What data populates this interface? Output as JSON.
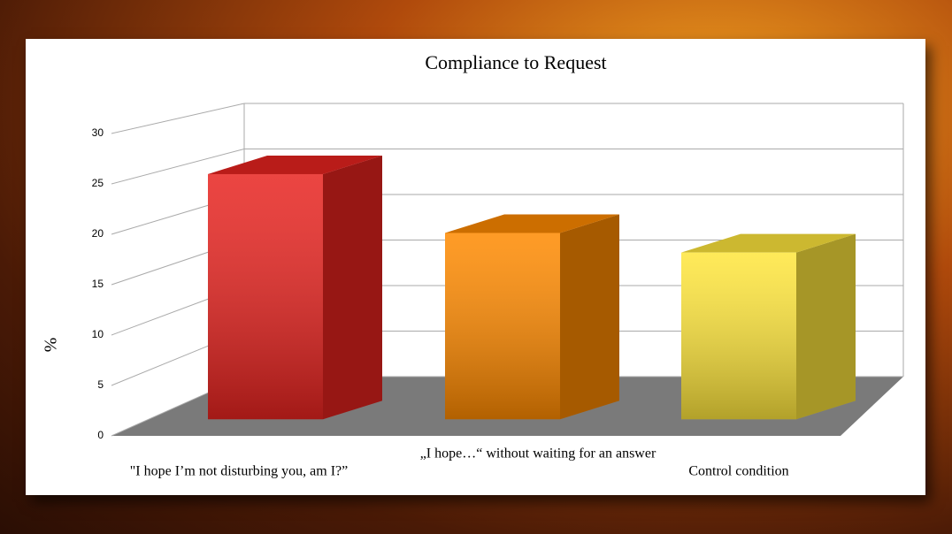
{
  "chart_data": {
    "type": "bar3d",
    "title": "Compliance to Request",
    "y_label": "%",
    "categories": [
      "\"I hope I’m not disturbing you, am I?”",
      "„I hope…“ without waiting for an answer",
      "Control condition"
    ],
    "values": [
      25,
      19,
      17
    ],
    "colors": [
      "#e82420",
      "#ff8a00",
      "#ffe63c"
    ],
    "ylim": [
      0,
      30
    ],
    "yticks": [
      0,
      5,
      10,
      15,
      20,
      25,
      30
    ],
    "grid": true
  }
}
